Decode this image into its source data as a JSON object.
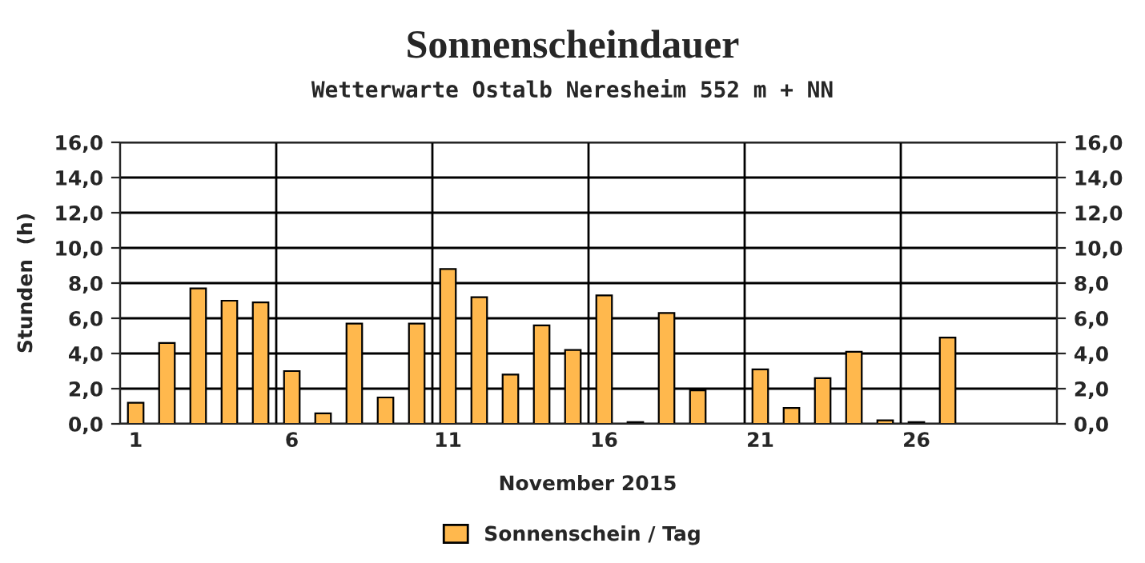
{
  "chart_data": {
    "type": "bar",
    "title": "Sonnenscheindauer",
    "subtitle": "Wetterwarte Ostalb Neresheim 552 m + NN",
    "xlabel": "November 2015",
    "ylabel": "Stunden  (h)",
    "categories": [
      "1",
      null,
      null,
      null,
      null,
      "6",
      null,
      null,
      null,
      null,
      "11",
      null,
      null,
      null,
      null,
      "16",
      null,
      null,
      null,
      null,
      "21",
      null,
      null,
      null,
      null,
      "26",
      null,
      null,
      null,
      null
    ],
    "series": [
      {
        "name": "Sonnenschein / Tag",
        "color": "#ffb84d",
        "values": [
          1.2,
          4.6,
          7.7,
          7.0,
          6.9,
          3.0,
          0.6,
          5.7,
          1.5,
          5.7,
          8.8,
          7.2,
          2.8,
          5.6,
          4.2,
          7.3,
          0.1,
          6.3,
          1.9,
          null,
          3.1,
          0.9,
          2.6,
          4.1,
          0.2,
          0.1,
          4.9,
          null,
          null,
          null
        ]
      }
    ],
    "ylim": [
      0,
      16
    ],
    "yticks": [
      {
        "value": 0,
        "label": "0,0"
      },
      {
        "value": 2,
        "label": "2,0"
      },
      {
        "value": 4,
        "label": "4,0"
      },
      {
        "value": 6,
        "label": "6,0"
      },
      {
        "value": 8,
        "label": "8,0"
      },
      {
        "value": 10,
        "label": "10,0"
      },
      {
        "value": 12,
        "label": "12,0"
      },
      {
        "value": 14,
        "label": "14,0"
      },
      {
        "value": 16,
        "label": "16,0"
      }
    ],
    "y2lim": [
      0,
      16
    ],
    "y2ticks": [
      {
        "value": 0,
        "label": "0,0"
      },
      {
        "value": 2,
        "label": "2,0"
      },
      {
        "value": 4,
        "label": "4,0"
      },
      {
        "value": 6,
        "label": "6,0"
      },
      {
        "value": 8,
        "label": "8,0"
      },
      {
        "value": 10,
        "label": "10,0"
      },
      {
        "value": 12,
        "label": "12,0"
      },
      {
        "value": 14,
        "label": "14,0"
      },
      {
        "value": 16,
        "label": "16,0"
      }
    ],
    "grid": true,
    "legend": "bottom"
  }
}
